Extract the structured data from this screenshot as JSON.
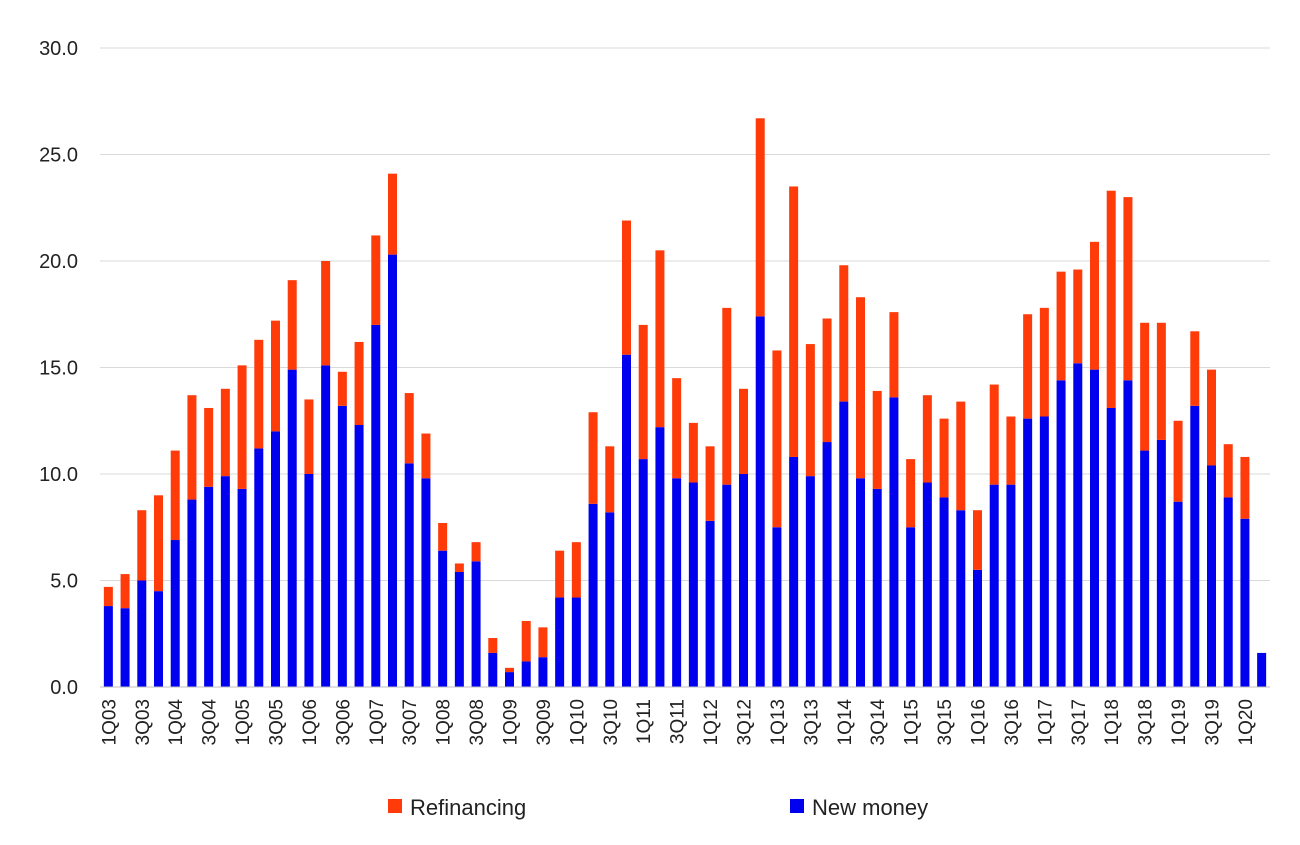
{
  "chart_data": {
    "type": "bar",
    "stacked": true,
    "ylim": [
      0,
      30
    ],
    "yticks": [
      "0.0",
      "5.0",
      "10.0",
      "15.0",
      "20.0",
      "25.0",
      "30.0"
    ],
    "grid": true,
    "legend_position": "bottom",
    "categories": [
      "1Q03",
      "2Q03",
      "3Q03",
      "4Q03",
      "1Q04",
      "2Q04",
      "3Q04",
      "4Q04",
      "1Q05",
      "2Q05",
      "3Q05",
      "4Q05",
      "1Q06",
      "2Q06",
      "3Q06",
      "4Q06",
      "1Q07",
      "2Q07",
      "3Q07",
      "4Q07",
      "1Q08",
      "2Q08",
      "3Q08",
      "4Q08",
      "1Q09",
      "2Q09",
      "3Q09",
      "4Q09",
      "1Q10",
      "2Q10",
      "3Q10",
      "4Q10",
      "1Q11",
      "2Q11",
      "3Q11",
      "4Q11",
      "1Q12",
      "2Q12",
      "3Q12",
      "4Q12",
      "1Q13",
      "2Q13",
      "3Q13",
      "4Q13",
      "1Q14",
      "2Q14",
      "3Q14",
      "4Q14",
      "1Q15",
      "2Q15",
      "3Q15",
      "4Q15",
      "1Q16",
      "2Q16",
      "3Q16",
      "4Q16",
      "1Q17",
      "2Q17",
      "3Q17",
      "4Q17",
      "1Q18",
      "2Q18",
      "3Q18",
      "4Q18",
      "1Q19",
      "2Q19",
      "3Q19",
      "4Q19",
      "1Q20",
      "2Q20"
    ],
    "visible_xtick_labels": [
      "1Q03",
      "3Q03",
      "1Q04",
      "3Q04",
      "1Q05",
      "3Q05",
      "1Q06",
      "3Q06",
      "1Q07",
      "3Q07",
      "1Q08",
      "3Q08",
      "1Q09",
      "3Q09",
      "1Q10",
      "3Q10",
      "1Q11",
      "3Q11",
      "1Q12",
      "3Q12",
      "1Q13",
      "3Q13",
      "1Q14",
      "3Q14",
      "1Q15",
      "3Q15",
      "1Q16",
      "3Q16",
      "1Q17",
      "3Q17",
      "1Q18",
      "3Q18",
      "1Q19",
      "3Q19",
      "1Q20"
    ],
    "series": [
      {
        "name": "New money",
        "color": "#0000ee",
        "values": [
          3.8,
          3.7,
          5.0,
          4.5,
          6.9,
          8.8,
          9.4,
          9.9,
          9.3,
          11.2,
          12.0,
          14.9,
          10.0,
          15.1,
          13.2,
          12.3,
          17.0,
          20.3,
          10.5,
          9.8,
          6.4,
          5.4,
          5.9,
          1.6,
          0.7,
          1.2,
          1.4,
          4.2,
          4.2,
          8.6,
          8.2,
          15.6,
          10.7,
          12.2,
          9.8,
          9.6,
          7.8,
          9.5,
          10.0,
          17.4,
          7.5,
          10.8,
          9.9,
          11.5,
          13.4,
          9.8,
          9.3,
          13.6,
          7.5,
          9.6,
          8.9,
          8.3,
          5.5,
          9.5,
          9.5,
          12.6,
          12.7,
          14.4,
          15.2,
          14.9,
          13.1,
          14.4,
          11.1,
          11.6,
          8.7,
          13.2,
          10.4,
          8.9,
          7.9,
          1.6
        ]
      },
      {
        "name": "Refinancing",
        "color": "#ff3b0a",
        "values": [
          0.9,
          1.6,
          3.3,
          4.5,
          4.2,
          4.9,
          3.7,
          4.1,
          5.8,
          5.1,
          5.2,
          4.2,
          3.5,
          4.9,
          1.6,
          3.9,
          4.2,
          3.8,
          3.3,
          2.1,
          1.3,
          0.4,
          0.9,
          0.7,
          0.2,
          1.9,
          1.4,
          2.2,
          2.6,
          4.3,
          3.1,
          6.3,
          6.3,
          8.3,
          4.7,
          2.8,
          3.5,
          8.3,
          4.0,
          9.3,
          8.3,
          12.7,
          6.2,
          5.8,
          6.4,
          8.5,
          4.6,
          4.0,
          3.2,
          4.1,
          3.7,
          5.1,
          2.8,
          4.7,
          3.2,
          4.9,
          5.1,
          5.1,
          4.4,
          6.0,
          10.2,
          8.6,
          6.0,
          5.5,
          3.8,
          3.5,
          4.5,
          2.5,
          2.9,
          0.0
        ]
      }
    ],
    "legend": [
      {
        "name": "Refinancing",
        "color": "#ff3b0a"
      },
      {
        "name": "New money",
        "color": "#0000ee"
      }
    ]
  }
}
